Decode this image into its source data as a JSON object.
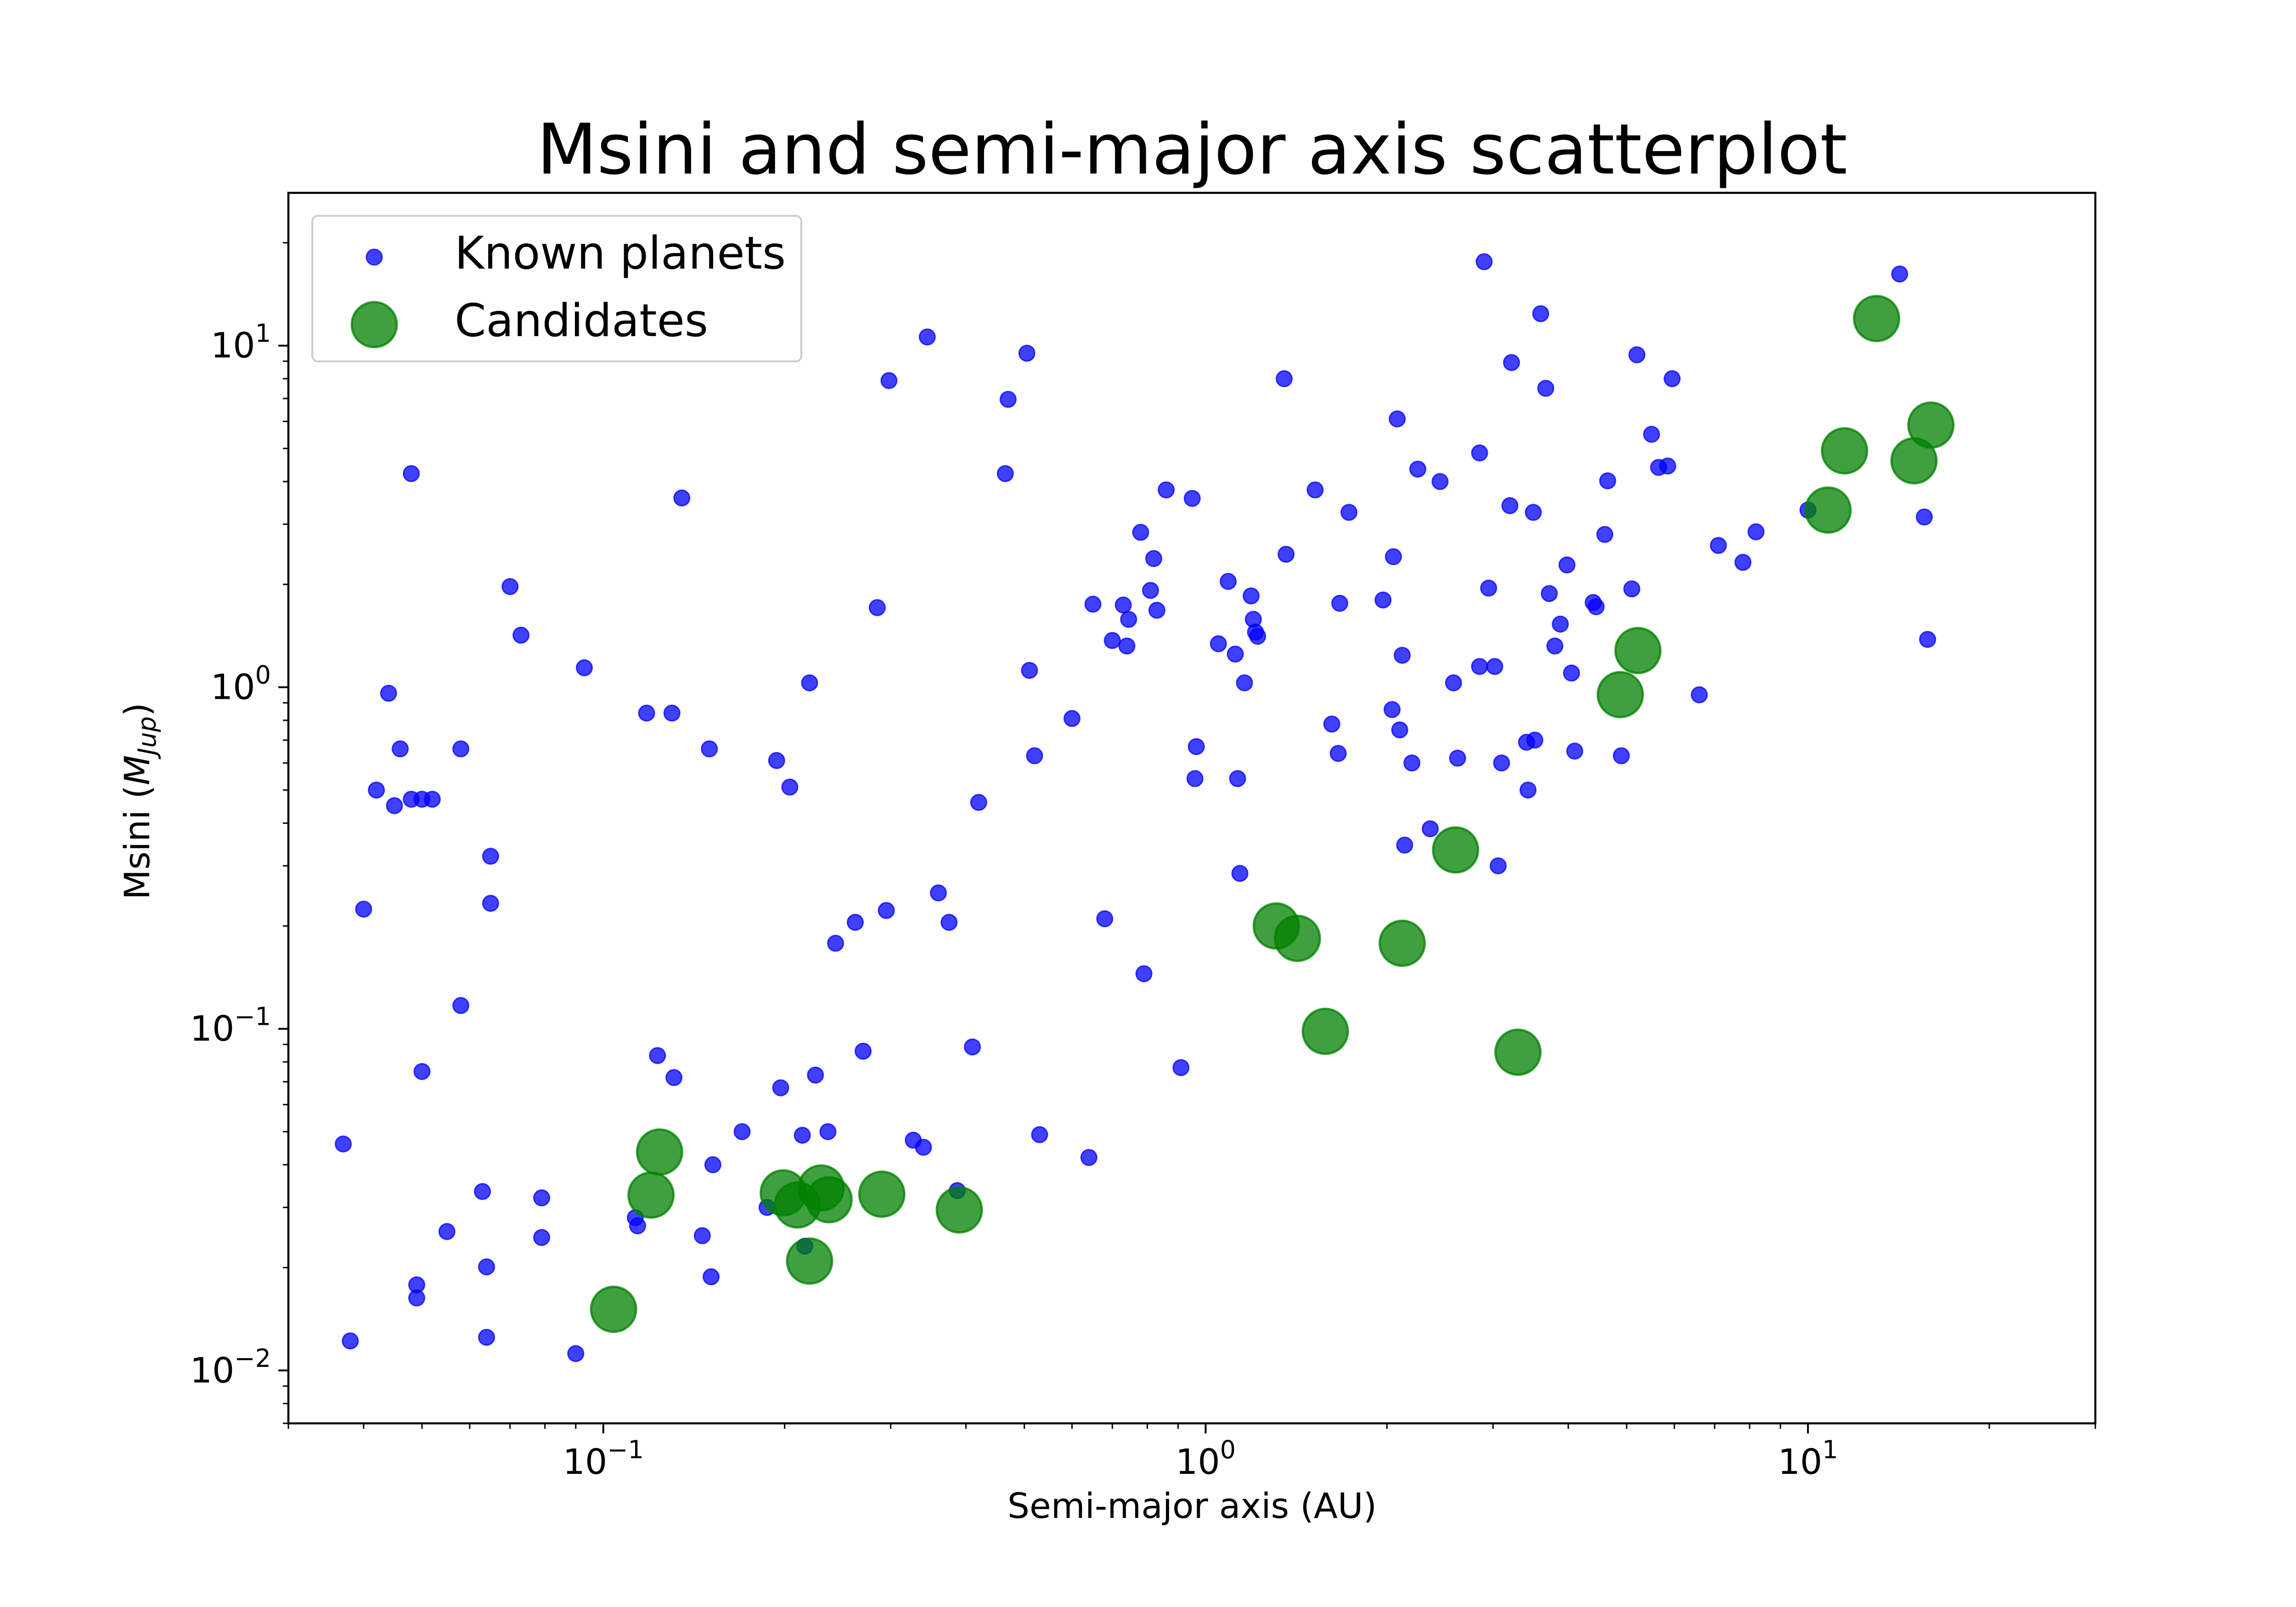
{
  "chart_data": {
    "type": "scatter",
    "title": "Msini and semi-major axis scatterplot",
    "xlabel": "Semi-major axis (AU)",
    "ylabel_prefix": "Msini (",
    "ylabel_math": "M",
    "ylabel_sub": "Jup",
    "ylabel_suffix": ")",
    "xscale": "log",
    "yscale": "log",
    "xlim": [
      0.03,
      30
    ],
    "ylim": [
      0.007,
      28
    ],
    "grid": false,
    "legend_position": "top-left",
    "x_ticks": [
      {
        "value": 0.1,
        "base": "10",
        "exp": "−1"
      },
      {
        "value": 1,
        "base": "10",
        "exp": "0"
      },
      {
        "value": 10,
        "base": "10",
        "exp": "1"
      }
    ],
    "y_ticks": [
      {
        "value": 0.01,
        "base": "10",
        "exp": "−2"
      },
      {
        "value": 0.1,
        "base": "10",
        "exp": "−1"
      },
      {
        "value": 1,
        "base": "10",
        "exp": "0"
      },
      {
        "value": 10,
        "base": "10",
        "exp": "1"
      }
    ],
    "series": [
      {
        "name": "Known planets",
        "color": "#0000ff",
        "marker_size": "small",
        "x": [
          0.037,
          0.038,
          0.04,
          0.042,
          0.044,
          0.045,
          0.046,
          0.048,
          0.048,
          0.049,
          0.049,
          0.05,
          0.05,
          0.052,
          0.055,
          0.058,
          0.058,
          0.063,
          0.064,
          0.064,
          0.065,
          0.065,
          0.07,
          0.073,
          0.079,
          0.079,
          0.09,
          0.093,
          0.113,
          0.114,
          0.118,
          0.123,
          0.13,
          0.131,
          0.135,
          0.146,
          0.15,
          0.151,
          0.152,
          0.17,
          0.187,
          0.194,
          0.197,
          0.204,
          0.214,
          0.216,
          0.22,
          0.225,
          0.236,
          0.243,
          0.262,
          0.27,
          0.285,
          0.295,
          0.298,
          0.327,
          0.34,
          0.345,
          0.36,
          0.375,
          0.387,
          0.41,
          0.42,
          0.465,
          0.47,
          0.505,
          0.51,
          0.52,
          0.53,
          0.6,
          0.64,
          0.65,
          0.68,
          0.7,
          0.73,
          0.74,
          0.745,
          0.78,
          0.79,
          0.81,
          0.82,
          0.83,
          0.86,
          0.91,
          0.95,
          0.96,
          0.965,
          1.05,
          1.09,
          1.12,
          1.13,
          1.14,
          1.16,
          1.19,
          1.2,
          1.21,
          1.22,
          1.35,
          1.36,
          1.52,
          1.62,
          1.66,
          1.67,
          1.73,
          1.97,
          2.04,
          2.05,
          2.08,
          2.1,
          2.12,
          2.14,
          2.2,
          2.25,
          2.36,
          2.45,
          2.58,
          2.62,
          2.85,
          2.85,
          2.9,
          2.95,
          3.02,
          3.06,
          3.1,
          3.2,
          3.22,
          3.41,
          3.43,
          3.5,
          3.52,
          3.6,
          3.67,
          3.72,
          3.8,
          3.88,
          3.98,
          4.05,
          4.1,
          4.4,
          4.45,
          4.6,
          4.65,
          4.9,
          5.1,
          5.2,
          5.5,
          5.65,
          5.85,
          5.95,
          6.6,
          7.1,
          7.8,
          8.2,
          10.0,
          14.2,
          15.6,
          15.8
        ],
        "y": [
          0.046,
          0.0122,
          0.224,
          0.5,
          0.96,
          0.45,
          0.66,
          4.22,
          0.47,
          0.0178,
          0.0163,
          0.075,
          0.47,
          0.47,
          0.0255,
          0.66,
          0.117,
          0.0334,
          0.0201,
          0.0125,
          0.233,
          0.32,
          1.97,
          1.42,
          0.032,
          0.0245,
          0.0112,
          1.14,
          0.028,
          0.0265,
          0.84,
          0.0835,
          0.84,
          0.072,
          3.58,
          0.0248,
          0.66,
          0.0188,
          0.04,
          0.05,
          0.03,
          0.61,
          0.0672,
          0.51,
          0.0488,
          0.0231,
          1.03,
          0.0732,
          0.05,
          0.178,
          0.205,
          0.086,
          1.71,
          0.222,
          7.9,
          0.0472,
          0.045,
          10.6,
          0.25,
          0.205,
          0.0336,
          0.0885,
          0.46,
          4.22,
          6.96,
          9.5,
          1.12,
          0.63,
          0.049,
          0.81,
          0.042,
          1.75,
          0.21,
          1.37,
          1.74,
          1.32,
          1.58,
          2.84,
          0.145,
          1.92,
          2.38,
          1.68,
          3.78,
          0.077,
          3.57,
          0.54,
          0.67,
          1.34,
          2.04,
          1.25,
          0.54,
          0.285,
          1.03,
          1.85,
          1.58,
          1.45,
          1.41,
          8.0,
          2.45,
          3.78,
          0.78,
          0.64,
          1.76,
          3.25,
          1.8,
          0.86,
          2.41,
          6.1,
          0.75,
          1.24,
          0.345,
          0.6,
          4.35,
          0.385,
          4.0,
          1.03,
          0.62,
          4.85,
          1.15,
          17.6,
          1.95,
          1.15,
          0.3,
          0.6,
          3.4,
          8.92,
          0.69,
          0.5,
          3.25,
          0.7,
          12.4,
          7.5,
          1.88,
          1.32,
          1.53,
          2.28,
          1.1,
          0.65,
          1.77,
          1.72,
          2.8,
          4.02,
          0.63,
          1.94,
          9.4,
          5.5,
          4.4,
          4.44,
          8.0,
          0.95,
          2.6,
          2.32,
          2.85,
          3.3,
          16.2,
          3.15,
          1.38
        ]
      },
      {
        "name": "Candidates",
        "color": "#008000",
        "marker_size": "large",
        "x": [
          0.104,
          0.12,
          0.124,
          0.199,
          0.21,
          0.22,
          0.23,
          0.237,
          0.29,
          0.39,
          1.31,
          1.42,
          1.58,
          2.12,
          2.6,
          3.3,
          4.88,
          5.22,
          10.8,
          11.5,
          13.0,
          15.0,
          16.0
        ],
        "y": [
          0.0151,
          0.0326,
          0.0436,
          0.0331,
          0.0305,
          0.0209,
          0.0342,
          0.0316,
          0.0328,
          0.0295,
          0.2,
          0.184,
          0.0983,
          0.178,
          0.334,
          0.0854,
          0.951,
          1.28,
          3.3,
          4.92,
          12.0,
          4.6,
          5.85
        ]
      }
    ]
  }
}
